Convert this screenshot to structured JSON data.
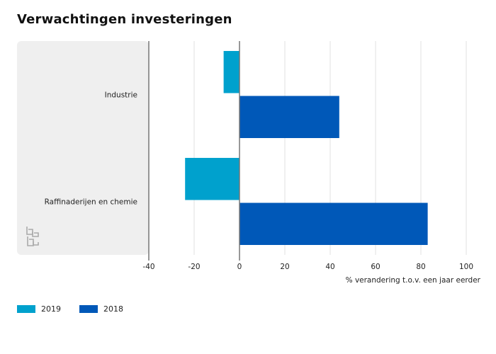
{
  "chart_data": {
    "type": "bar",
    "orientation": "horizontal",
    "title": "Verwachtingen investeringen",
    "categories": [
      "Industrie",
      "Raffinaderijen en chemie"
    ],
    "series": [
      {
        "name": "2019",
        "color": "#00a1cd",
        "values": [
          -7,
          -24
        ]
      },
      {
        "name": "2018",
        "color": "#0058b8",
        "values": [
          44,
          83
        ]
      }
    ],
    "xlabel": "% verandering t.o.v. een jaar eerder",
    "ylabel": "",
    "xlim": [
      -40,
      100
    ],
    "xticks": [
      -40,
      -20,
      0,
      20,
      40,
      60,
      80,
      100
    ],
    "grid": true,
    "legend_position": "bottom-left"
  },
  "colors": {
    "label_panel": "#efefef",
    "gridline": "#e2e2e2",
    "axis": "#777777"
  },
  "logo": {
    "icon": "cbs-logo-icon"
  }
}
